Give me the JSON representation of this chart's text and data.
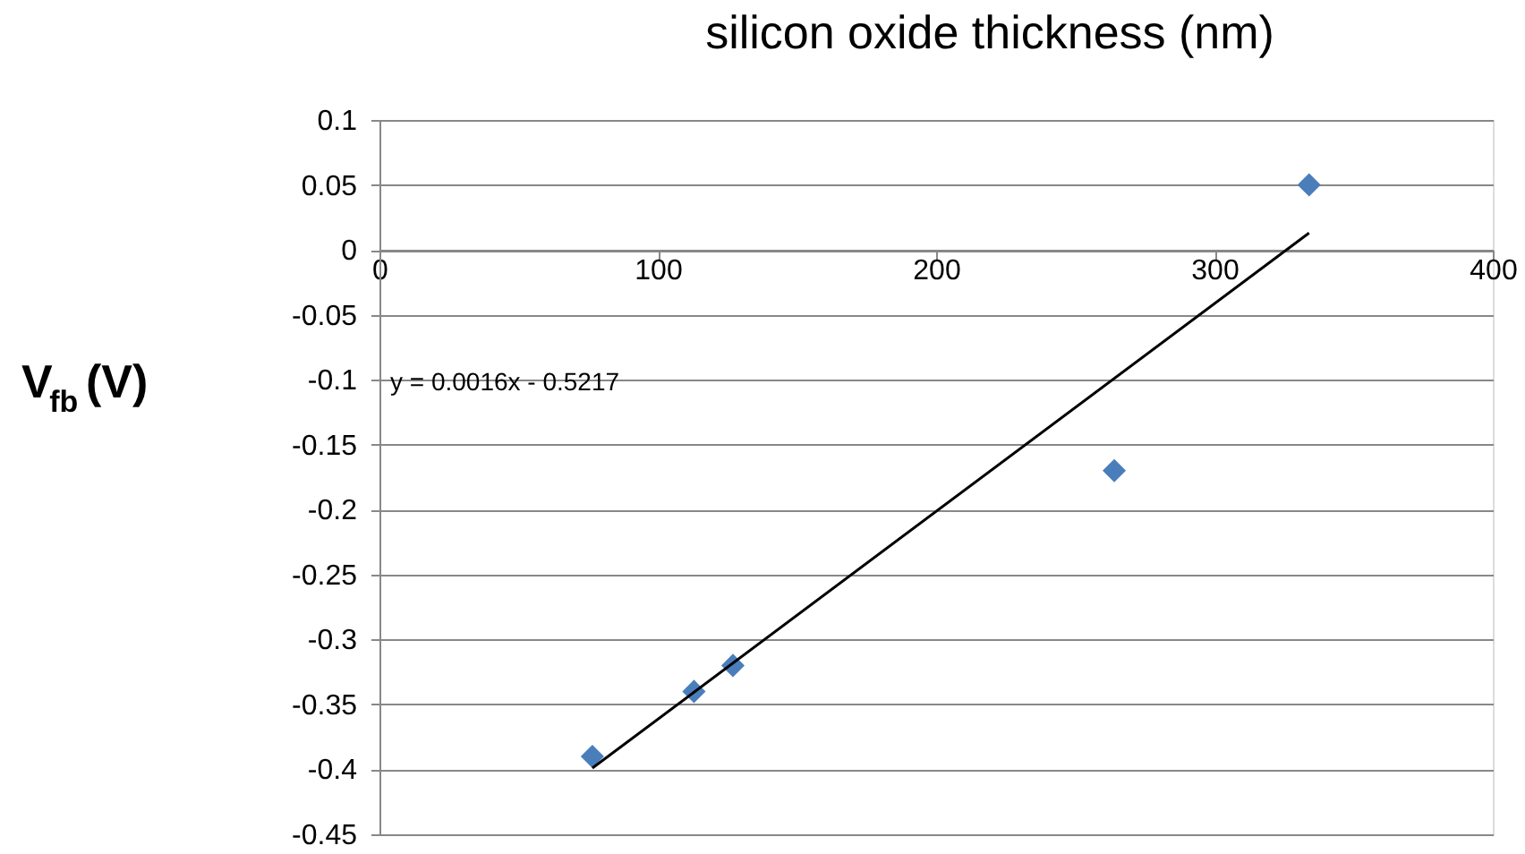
{
  "chart_data": {
    "type": "scatter",
    "xlabel": "silicon oxide thickness (nm)",
    "ylabel": "V$_{fb}$ (V)",
    "x": [
      76.5,
      113,
      127,
      264,
      334
    ],
    "series": [
      {
        "color": "#4a7ebb",
        "marker": "diamond",
        "values": [
          -0.39,
          -0.34,
          -0.32,
          -0.17,
          0.05
        ]
      },
      {
        "type": "line",
        "color": "#000000",
        "marker": "none",
        "x": [
          76.5,
          334
        ],
        "values": [
          -0.399,
          0.013
        ]
      }
    ],
    "xlim": [
      0,
      400
    ],
    "xticks": [
      0,
      100,
      200,
      300,
      400
    ],
    "ylim": [
      -0.45,
      0.1
    ],
    "yticks": [
      -0.45,
      -0.4,
      -0.35,
      -0.3,
      -0.25,
      -0.2,
      -0.15,
      -0.1,
      -0.05,
      0,
      0.05,
      0.1
    ],
    "grid": "y",
    "annotations": [
      "y = 0.0016x - 0.5217"
    ]
  }
}
